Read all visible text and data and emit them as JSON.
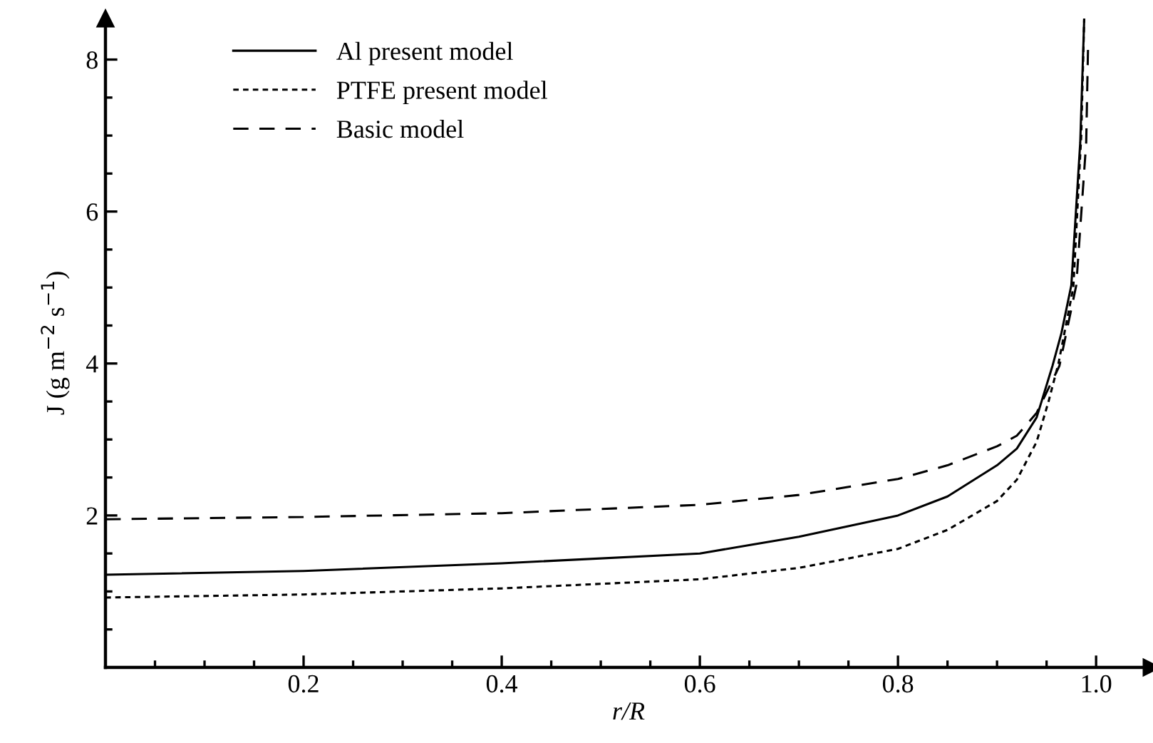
{
  "chart_data": {
    "type": "line",
    "xlabel": "r/R",
    "ylabel": "J (g m$^{−2}$ s$^{−1}$)",
    "xlim": [
      0,
      1.056
    ],
    "ylim": [
      0,
      8.54
    ],
    "xticks": [
      {
        "value": 0.05,
        "label": null
      },
      {
        "value": 0.1,
        "label": null
      },
      {
        "value": 0.15,
        "label": null
      },
      0.2,
      {
        "value": 0.25,
        "label": null
      },
      {
        "value": 0.3,
        "label": null
      },
      {
        "value": 0.35,
        "label": null
      },
      0.4,
      {
        "value": 0.45,
        "label": null
      },
      {
        "value": 0.5,
        "label": null
      },
      {
        "value": 0.55,
        "label": null
      },
      0.6,
      {
        "value": 0.65,
        "label": null
      },
      {
        "value": 0.7,
        "label": null
      },
      {
        "value": 0.75,
        "label": null
      },
      0.8,
      {
        "value": 0.85,
        "label": null
      },
      {
        "value": 0.9,
        "label": null
      },
      {
        "value": 0.95,
        "label": null
      },
      {
        "value": 1.0,
        "label": "1.0"
      }
    ],
    "yticks": [
      {
        "value": 0.5,
        "label": null
      },
      {
        "value": 1,
        "label": null
      },
      {
        "value": 1.5,
        "label": null
      },
      2,
      {
        "value": 2.5,
        "label": null
      },
      {
        "value": 3,
        "label": null
      },
      {
        "value": 3.5,
        "label": null
      },
      4,
      {
        "value": 4.5,
        "label": null
      },
      {
        "value": 5,
        "label": null
      },
      {
        "value": 5.5,
        "label": null
      },
      6,
      {
        "value": 6.5,
        "label": null
      },
      {
        "value": 7,
        "label": null
      },
      {
        "value": 7.5,
        "label": null
      },
      8
    ],
    "grid": false,
    "legend": "top left",
    "marker": "none",
    "series": [
      {
        "name": "Al present model",
        "color": "#000000",
        "line_style": "solid",
        "x": [
          0,
          0.2,
          0.4,
          0.6,
          0.7,
          0.8,
          0.85,
          0.9,
          0.92,
          0.94,
          0.956,
          0.965,
          0.975,
          0.984,
          0.988
        ],
        "values": [
          1.22,
          1.27,
          1.37,
          1.5,
          1.72,
          2.0,
          2.25,
          2.66,
          2.88,
          3.29,
          3.97,
          4.4,
          5.03,
          6.91,
          8.54
        ]
      },
      {
        "name": "PTFE present model",
        "color": "#000000",
        "line_style": "dotted",
        "x": [
          0,
          0.2,
          0.4,
          0.6,
          0.7,
          0.8,
          0.85,
          0.9,
          0.92,
          0.94,
          0.952,
          0.962,
          0.977,
          0.985,
          0.988
        ],
        "values": [
          0.92,
          0.96,
          1.04,
          1.16,
          1.31,
          1.56,
          1.81,
          2.19,
          2.47,
          2.97,
          3.5,
          4.0,
          5.0,
          7.0,
          8.54
        ]
      },
      {
        "name": "Basic model",
        "color": "#000000",
        "line_style": "dashed",
        "x": [
          0,
          0.2,
          0.4,
          0.6,
          0.7,
          0.8,
          0.85,
          0.9,
          0.92,
          0.94,
          0.963,
          0.98,
          0.99,
          0.992
        ],
        "values": [
          1.95,
          1.98,
          2.03,
          2.14,
          2.27,
          2.48,
          2.66,
          2.91,
          3.05,
          3.35,
          3.97,
          5.03,
          6.91,
          8.25
        ]
      }
    ]
  }
}
